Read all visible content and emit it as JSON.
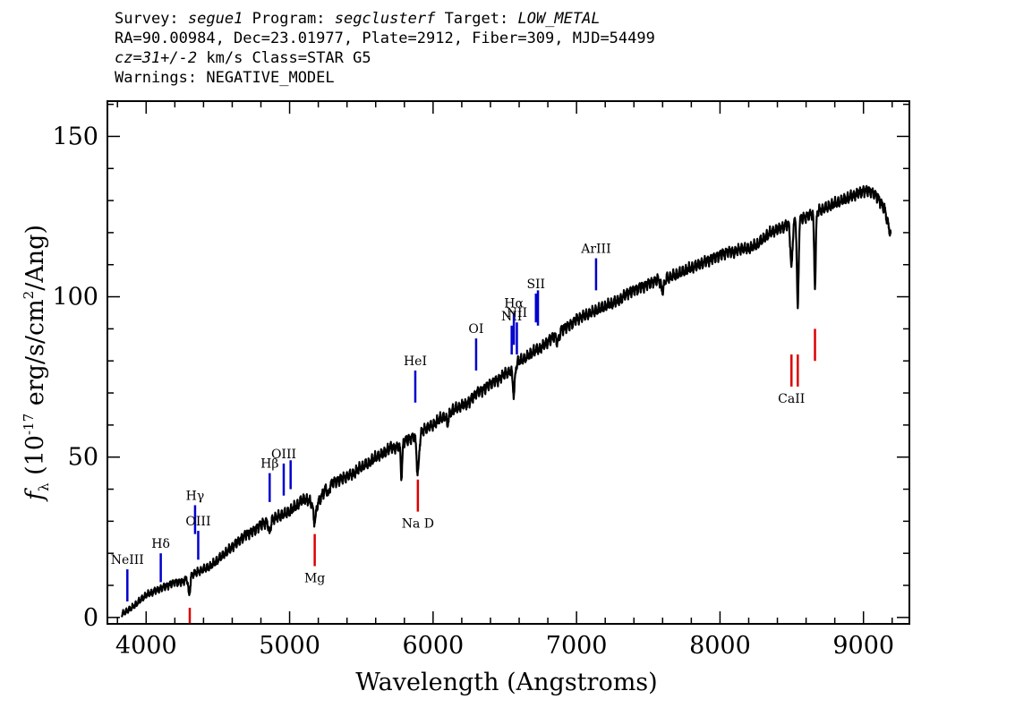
{
  "header": {
    "line1": {
      "survey_label": "Survey:",
      "survey": "segue1",
      "program_label": "Program:",
      "program": "segclusterf",
      "target_label": "Target:",
      "target": "LOW_METAL"
    },
    "line2": "RA=90.00984, Dec=23.01977, Plate=2912, Fiber=309, MJD=54499",
    "line3": {
      "cz": "cz=31+/-2",
      "rest": "km/s Class=STAR G5"
    },
    "line4": "Warnings: NEGATIVE_MODEL"
  },
  "chart_data": {
    "type": "line",
    "xlabel": "Wavelength (Angstroms)",
    "ylabel": "f_λ (10^-17 erg/s/cm^2/Ang)",
    "xlim": [
      3730,
      9320
    ],
    "ylim": [
      -2,
      161
    ],
    "xticks": [
      4000,
      5000,
      6000,
      7000,
      8000,
      9000
    ],
    "yticks": [
      0,
      50,
      100,
      150
    ],
    "colors": {
      "spectrum": "#000000",
      "error": "#bbbbbb",
      "emission": "#0000cc",
      "absorption": "#dd0000"
    },
    "series": [
      {
        "x": [
          3830,
          3900,
          3950,
          4000,
          4050,
          4100,
          4150,
          4200,
          4250,
          4300,
          4350,
          4400,
          4450,
          4500,
          4550,
          4600,
          4650,
          4700,
          4750,
          4800,
          4850,
          4900,
          4950,
          5000,
          5050,
          5100,
          5150,
          5200,
          5250,
          5300,
          5350,
          5400,
          5450,
          5500,
          5550,
          5600,
          5650,
          5700,
          5750,
          5800,
          5850,
          5900,
          5950,
          6000,
          6050,
          6100,
          6150,
          6200,
          6250,
          6300,
          6350,
          6400,
          6450,
          6500,
          6550,
          6600,
          6650,
          6700,
          6750,
          6800,
          6850,
          6900,
          6950,
          7000,
          7050,
          7100,
          7150,
          7200,
          7250,
          7300,
          7350,
          7400,
          7450,
          7500,
          7550,
          7600,
          7650,
          7700,
          7750,
          7800,
          7850,
          7900,
          7950,
          8000,
          8050,
          8100,
          8150,
          8200,
          8250,
          8300,
          8350,
          8400,
          8450,
          8500,
          8550,
          8600,
          8650,
          8700,
          8750,
          8800,
          8850,
          8900,
          8950,
          9000,
          9050,
          9100,
          9150,
          9190
        ],
        "y": [
          1,
          3,
          5,
          7,
          8,
          9,
          10,
          11,
          11,
          13,
          14,
          15,
          16,
          18,
          20,
          22,
          24,
          26,
          27,
          29,
          30,
          31,
          32,
          33,
          35,
          37,
          36,
          36,
          40,
          42,
          43,
          44,
          45,
          47,
          48,
          50,
          51,
          53,
          53,
          55,
          56,
          57,
          59,
          60,
          62,
          63,
          65,
          66,
          67,
          70,
          71,
          73,
          74,
          76,
          77,
          80,
          81,
          83,
          84,
          86,
          88,
          90,
          91,
          93,
          94,
          95,
          96,
          97,
          98,
          99,
          101,
          102,
          103,
          104,
          105,
          106,
          106,
          107,
          108,
          109,
          110,
          111,
          112,
          113,
          114,
          114,
          115,
          115,
          116,
          118,
          120,
          121,
          122,
          123,
          124,
          125,
          126,
          127,
          128,
          129,
          130,
          131,
          132,
          133,
          133,
          131,
          127,
          119
        ]
      }
    ],
    "emission_lines": [
      {
        "label": "NeIII",
        "x": 3869,
        "y0": 5,
        "y1": 15
      },
      {
        "label": "Hδ",
        "x": 4102,
        "y0": 11,
        "y1": 20
      },
      {
        "label": "Hγ",
        "x": 4341,
        "y0": 26,
        "y1": 35
      },
      {
        "label": "OIII",
        "x": 4363,
        "y0": 18,
        "y1": 27
      },
      {
        "label": "Hβ",
        "x": 4861,
        "y0": 36,
        "y1": 45
      },
      {
        "label": "OIII",
        "x": 4959,
        "y0": 38,
        "y1": 48
      },
      {
        "label": "",
        "x": 5007,
        "y0": 40,
        "y1": 49
      },
      {
        "label": "HeI",
        "x": 5876,
        "y0": 67,
        "y1": 77
      },
      {
        "label": "OI",
        "x": 6300,
        "y0": 77,
        "y1": 87
      },
      {
        "label": "NII",
        "x": 6548,
        "y0": 82,
        "y1": 91
      },
      {
        "label": "Hα",
        "x": 6563,
        "y0": 85,
        "y1": 95
      },
      {
        "label": "NII",
        "x": 6584,
        "y0": 82,
        "y1": 92
      },
      {
        "label": "SII",
        "x": 6717,
        "y0": 92,
        "y1": 101
      },
      {
        "label": "",
        "x": 6731,
        "y0": 91,
        "y1": 102
      },
      {
        "label": "ArIII",
        "x": 7136,
        "y0": 102,
        "y1": 112
      }
    ],
    "absorption_lines": [
      {
        "label": "",
        "x": 4304,
        "y0": -2,
        "y1": 3
      },
      {
        "label": "Mg",
        "x": 5175,
        "y0": 16,
        "y1": 26
      },
      {
        "label": "Na D",
        "x": 5894,
        "y0": 33,
        "y1": 43
      },
      {
        "label": "CaII",
        "x": 8498,
        "y0": 72,
        "y1": 82
      },
      {
        "label": "",
        "x": 8542,
        "y0": 72,
        "y1": 82
      },
      {
        "label": "",
        "x": 8662,
        "y0": 80,
        "y1": 90
      }
    ]
  }
}
